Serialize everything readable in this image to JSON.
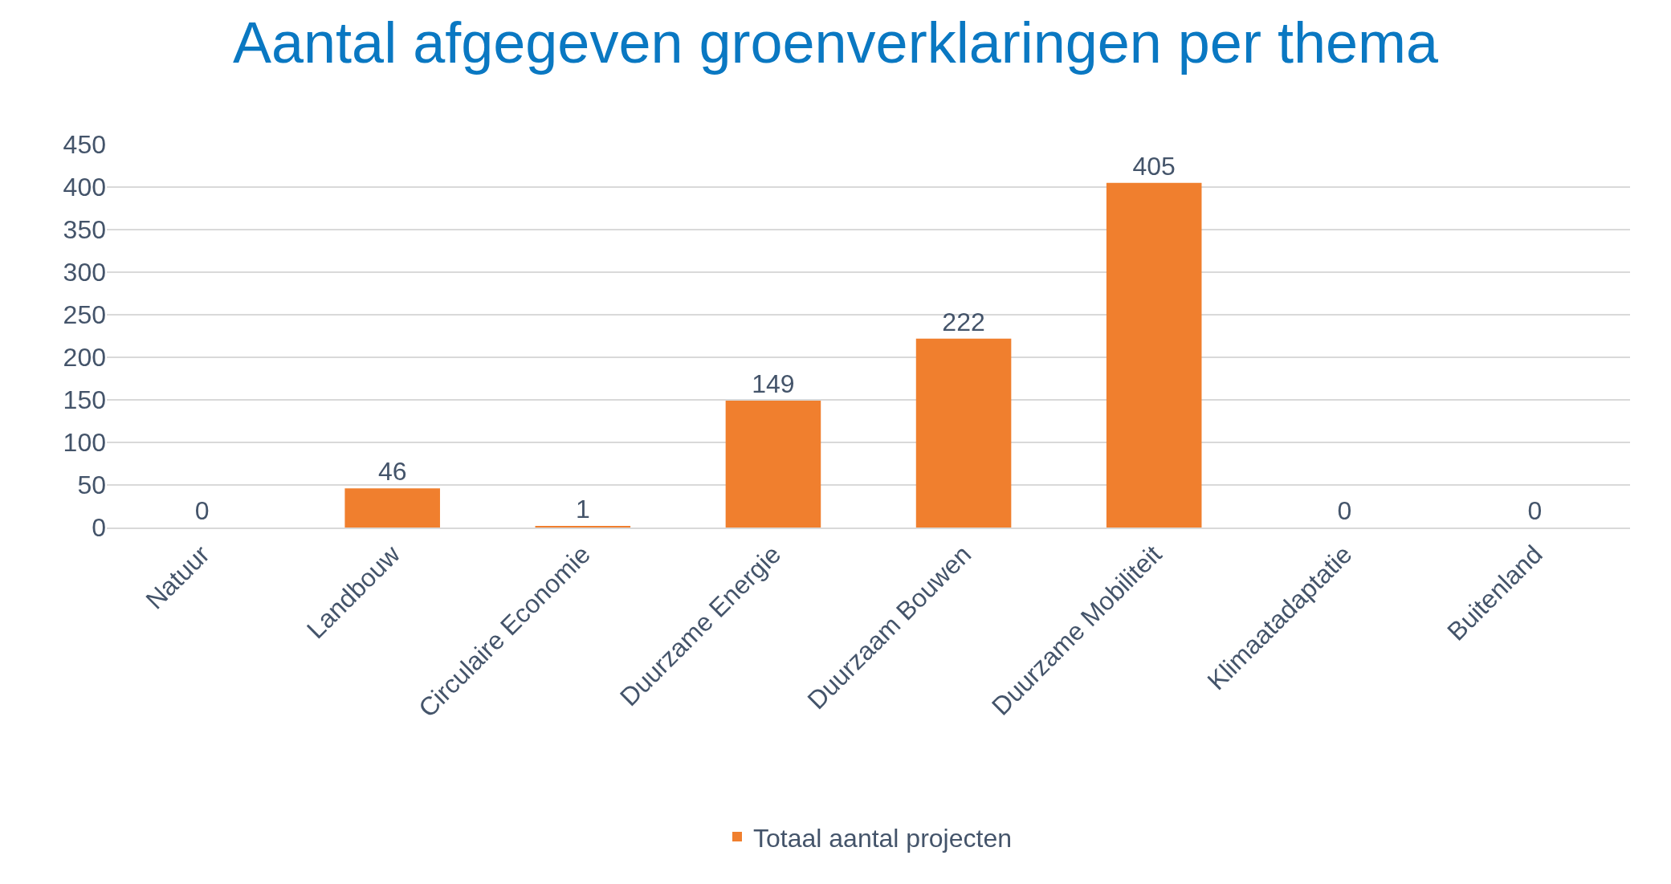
{
  "chart_data": {
    "type": "bar",
    "title": "Aantal afgegeven groenverklaringen per thema",
    "categories": [
      "Natuur",
      "Landbouw",
      "Circulaire Economie",
      "Duurzame Energie",
      "Duurzaam Bouwen",
      "Duurzame Mobiliteit",
      "Klimaatadaptatie",
      "Buitenland"
    ],
    "series": [
      {
        "name": "Totaal aantal projecten",
        "color": "#f07f2e",
        "values": [
          0,
          46,
          1,
          149,
          222,
          405,
          0,
          0
        ]
      }
    ],
    "ylim": [
      0,
      450
    ],
    "yticks": [
      0,
      50,
      100,
      150,
      200,
      250,
      300,
      350,
      400,
      450
    ],
    "grid": "y",
    "data_labels": true,
    "legend": "bottom"
  }
}
